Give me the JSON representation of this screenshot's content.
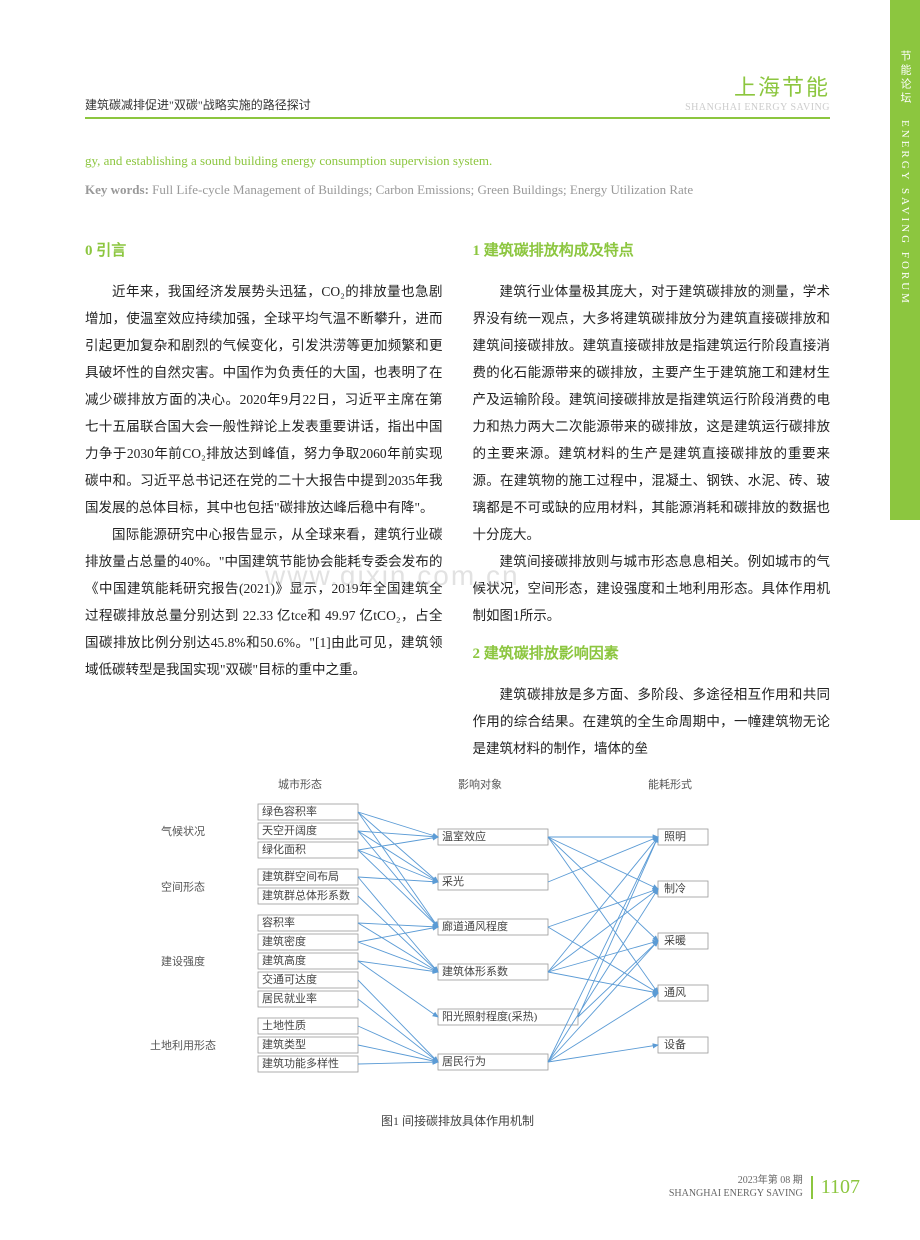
{
  "sideTab": "节能论坛　ENERGY SAVING FORUM",
  "header": {
    "left": "建筑碳减排促进\"双碳\"战略实施的路径探讨",
    "rightMain": "上海节能",
    "rightSub": "SHANGHAI ENERGY SAVING"
  },
  "abstractContinue": "gy, and establishing a sound building energy consumption supervision system.",
  "keywords": {
    "label": "Key words:",
    "text": " Full Life-cycle Management of Buildings; Carbon Emissions; Green Buildings; Energy Utilization Rate"
  },
  "leftCol": {
    "heading0": "0  引言",
    "p1": "近年来，我国经济发展势头迅猛，CO₂的排放量也急剧增加，使温室效应持续加强，全球平均气温不断攀升，进而引起更加复杂和剧烈的气候变化，引发洪涝等更加频繁和更具破坏性的自然灾害。中国作为负责任的大国，也表明了在减少碳排放方面的决心。2020年9月22日，习近平主席在第七十五届联合国大会一般性辩论上发表重要讲话，指出中国力争于2030年前CO₂排放达到峰值，努力争取2060年前实现碳中和。习近平总书记还在党的二十大报告中提到2035年我国发展的总体目标，其中也包括\"碳排放达峰后稳中有降\"。",
    "p2": "国际能源研究中心报告显示，从全球来看，建筑行业碳排放量占总量的40%。\"中国建筑节能协会能耗专委会发布的《中国建筑能耗研究报告(2021)》显示，2019年全国建筑全过程碳排放总量分别达到 22.33 亿tce和 49.97 亿tCO₂，占全国碳排放比例分别达45.8%和50.6%。\"[1]由此可见，建筑领域低碳转型是我国实现\"双碳\"目标的重中之重。"
  },
  "rightCol": {
    "heading1": "1  建筑碳排放构成及特点",
    "p1": "建筑行业体量极其庞大，对于建筑碳排放的测量，学术界没有统一观点，大多将建筑碳排放分为建筑直接碳排放和建筑间接碳排放。建筑直接碳排放是指建筑运行阶段直接消费的化石能源带来的碳排放，主要产生于建筑施工和建材生产及运输阶段。建筑间接碳排放是指建筑运行阶段消费的电力和热力两大二次能源带来的碳排放，这是建筑运行碳排放的主要来源。建筑材料的生产是建筑直接碳排放的重要来源。在建筑物的施工过程中，混凝土、钢铁、水泥、砖、玻璃都是不可或缺的应用材料，其能源消耗和碳排放的数据也十分庞大。",
    "p2": "建筑间接碳排放则与城市形态息息相关。例如城市的气候状况，空间形态，建设强度和土地利用形态。具体作用机制如图1所示。",
    "heading2": "2  建筑碳排放影响因素",
    "p3": "建筑碳排放是多方面、多阶段、多途径相互作用和共同作用的综合结果。在建筑的全生命周期中，一幢建筑物无论是建筑材料的制作，墙体的垒"
  },
  "diagram": {
    "caption": "图1  间接碳排放具体作用机制",
    "colHeaders": [
      "城市形态",
      "影响对象",
      "能耗形式"
    ],
    "categories": [
      "气候状况",
      "空间形态",
      "建设强度",
      "土地利用形态"
    ],
    "col1Groups": [
      {
        "cat": 0,
        "nodes": [
          "绿色容积率",
          "天空开阔度",
          "绿化面积"
        ]
      },
      {
        "cat": 1,
        "nodes": [
          "建筑群空间布局",
          "建筑群总体形系数"
        ]
      },
      {
        "cat": 2,
        "nodes": [
          "容积率",
          "建筑密度",
          "建筑高度",
          "交通可达度",
          "居民就业率"
        ]
      },
      {
        "cat": 3,
        "nodes": [
          "土地性质",
          "建筑类型",
          "建筑功能多样性"
        ]
      }
    ],
    "col2Nodes": [
      "温室效应",
      "采光",
      "廊道通风程度",
      "建筑体形系数",
      "阳光照射程度(采热)",
      "居民行为"
    ],
    "col3Nodes": [
      "照明",
      "制冷",
      "采暖",
      "通风",
      "设备"
    ],
    "edges12": [
      [
        0,
        0
      ],
      [
        0,
        1
      ],
      [
        0,
        2
      ],
      [
        1,
        0
      ],
      [
        1,
        1
      ],
      [
        1,
        2
      ],
      [
        2,
        0
      ],
      [
        2,
        1
      ],
      [
        2,
        2
      ],
      [
        3,
        1
      ],
      [
        3,
        3
      ],
      [
        4,
        3
      ],
      [
        5,
        2
      ],
      [
        5,
        3
      ],
      [
        6,
        2
      ],
      [
        6,
        3
      ],
      [
        7,
        3
      ],
      [
        7,
        4
      ],
      [
        8,
        5
      ],
      [
        9,
        5
      ],
      [
        10,
        5
      ],
      [
        11,
        5
      ],
      [
        12,
        5
      ]
    ],
    "edges23": [
      [
        0,
        0
      ],
      [
        0,
        1
      ],
      [
        0,
        2
      ],
      [
        0,
        3
      ],
      [
        1,
        0
      ],
      [
        2,
        1
      ],
      [
        2,
        3
      ],
      [
        3,
        0
      ],
      [
        3,
        1
      ],
      [
        3,
        2
      ],
      [
        3,
        3
      ],
      [
        4,
        0
      ],
      [
        4,
        2
      ],
      [
        5,
        0
      ],
      [
        5,
        1
      ],
      [
        5,
        2
      ],
      [
        5,
        3
      ],
      [
        5,
        4
      ]
    ],
    "style": {
      "nodeFill": "#ffffff",
      "nodeStroke": "#999999",
      "edgeColor": "#5b9bd5",
      "textColor": "#444444"
    }
  },
  "watermark": "www.gixin.com.cn",
  "footer": {
    "issue": "2023年第 08 期",
    "publisher": "SHANGHAI ENERGY SAVING",
    "page": "1107"
  }
}
